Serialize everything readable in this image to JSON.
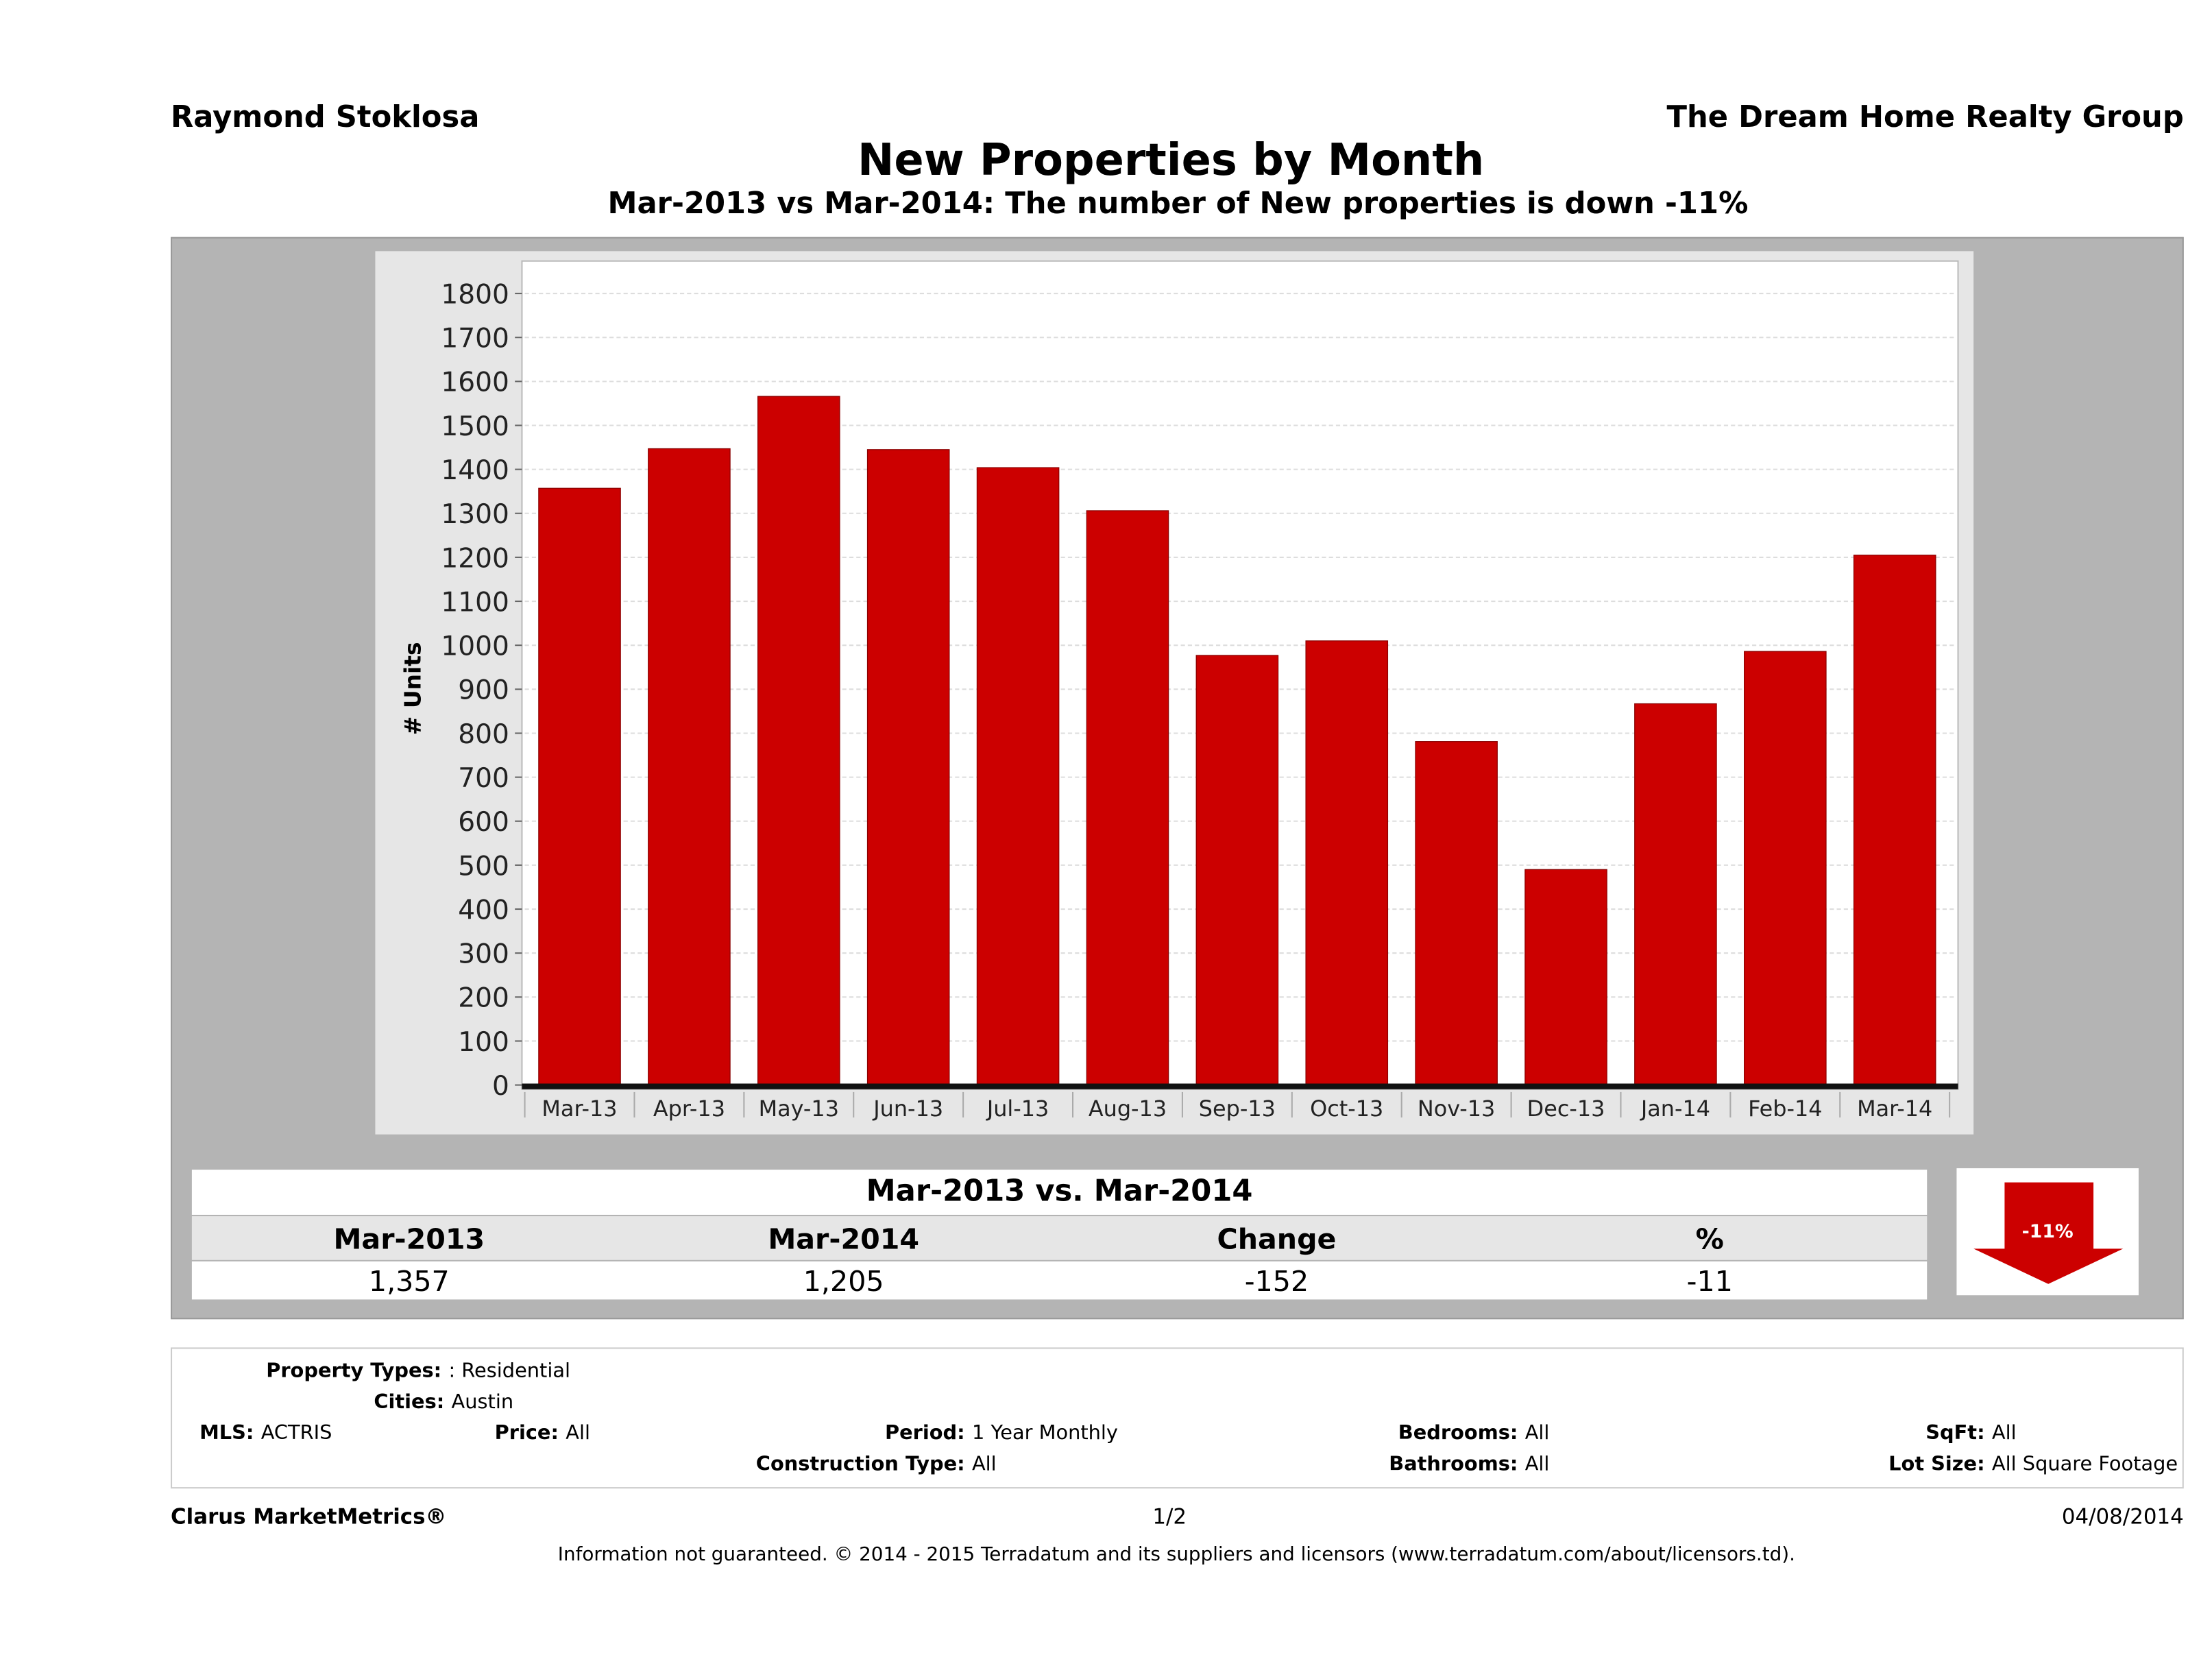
{
  "header": {
    "agent": "Raymond Stoklosa",
    "company": "The Dream Home Realty Group"
  },
  "title": "New Properties by Month",
  "subtitle": "Mar-2013 vs Mar-2014: The number of New  properties is down -11%",
  "chart_data": {
    "type": "bar",
    "ylabel": "# Units",
    "xlabel": "",
    "ylim": [
      0,
      1800
    ],
    "yticks": [
      0,
      100,
      200,
      300,
      400,
      500,
      600,
      700,
      800,
      900,
      1000,
      1100,
      1200,
      1300,
      1400,
      1500,
      1600,
      1700,
      1800
    ],
    "grid": true,
    "color": "#cc0000",
    "categories": [
      "Mar-13",
      "Apr-13",
      "May-13",
      "Jun-13",
      "Jul-13",
      "Aug-13",
      "Sep-13",
      "Oct-13",
      "Nov-13",
      "Dec-13",
      "Jan-14",
      "Feb-14",
      "Mar-14"
    ],
    "values": [
      1357,
      1447,
      1566,
      1445,
      1404,
      1306,
      977,
      1010,
      781,
      490,
      867,
      986,
      1205
    ]
  },
  "summary": {
    "title": "Mar-2013 vs. Mar-2014",
    "columns": [
      "Mar-2013",
      "Mar-2014",
      "Change",
      "%"
    ],
    "values": [
      "1,357",
      "1,205",
      "-152",
      "-11"
    ],
    "badge": "-11%",
    "badge_color": "#cc0000"
  },
  "criteria": {
    "property_types_label": "Property Types:",
    "property_types": ": Residential",
    "cities_label": "Cities:",
    "cities": "Austin",
    "mls_label": "MLS:",
    "mls": "ACTRIS",
    "price_label": "Price:",
    "price": "All",
    "period_label": "Period:",
    "period": "1 Year Monthly",
    "construction_label": "Construction Type:",
    "construction": "All",
    "bedrooms_label": "Bedrooms:",
    "bedrooms": "All",
    "bathrooms_label": "Bathrooms:",
    "bathrooms": "All",
    "sqft_label": "SqFt:",
    "sqft": "All",
    "lotsize_label": "Lot Size:",
    "lotsize": "All Square Footage"
  },
  "footer": {
    "brand": "Clarus MarketMetrics®",
    "page": "1/2",
    "date": "04/08/2014",
    "disclaimer": "Information not guaranteed. © 2014 - 2015 Terradatum and its suppliers and licensors (www.terradatum.com/about/licensors.td)."
  }
}
